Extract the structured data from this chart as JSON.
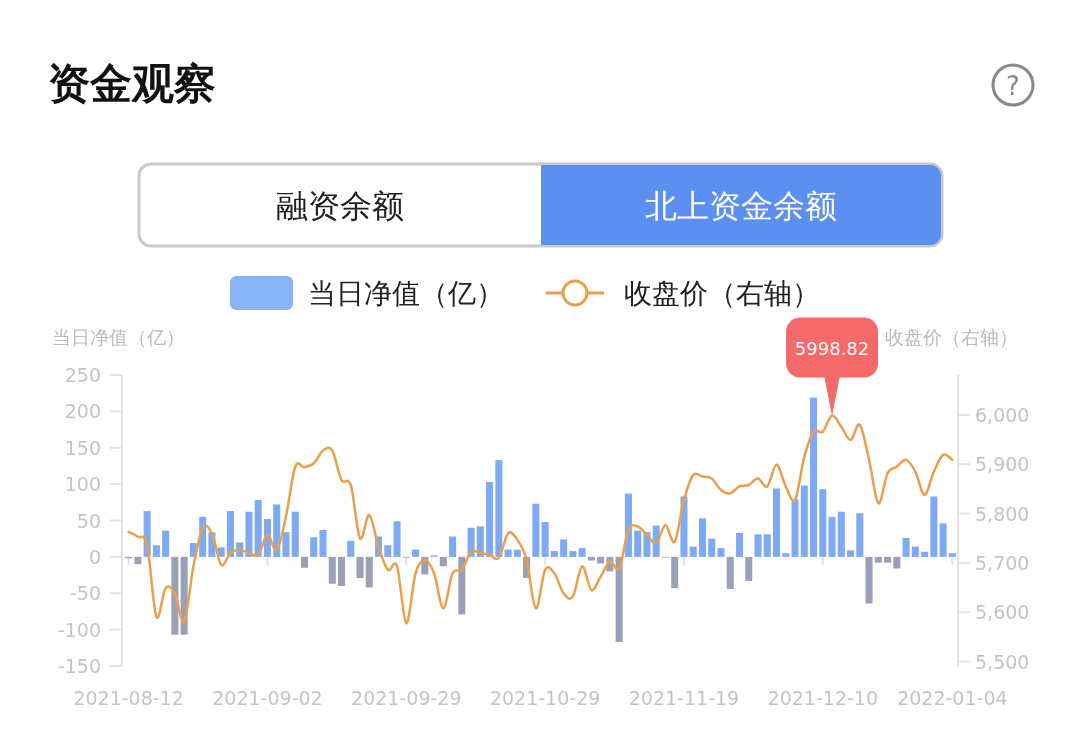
{
  "chart_data": {
    "type": "bar",
    "title": "资金观察",
    "ylabel": "当日净值（亿）",
    "y2label": "收盘价（右轴）",
    "categories": [
      "2021-08-12",
      null,
      null,
      null,
      null,
      null,
      null,
      null,
      null,
      null,
      null,
      null,
      null,
      null,
      null,
      "2021-09-02",
      null,
      null,
      null,
      null,
      null,
      null,
      null,
      null,
      null,
      null,
      null,
      null,
      null,
      null,
      "2021-09-29",
      null,
      null,
      null,
      null,
      null,
      null,
      null,
      null,
      null,
      null,
      null,
      null,
      null,
      null,
      "2021-10-29",
      null,
      null,
      null,
      null,
      null,
      null,
      null,
      null,
      null,
      null,
      null,
      null,
      null,
      null,
      "2021-11-19",
      null,
      null,
      null,
      null,
      null,
      null,
      null,
      null,
      null,
      null,
      null,
      null,
      null,
      null,
      "2021-12-10",
      null,
      null,
      null,
      null,
      null,
      null,
      null,
      null,
      null,
      null,
      null,
      null,
      null,
      "2022-01-04"
    ],
    "series": [
      {
        "name": "当日净值（亿）",
        "color": "#8ab4f8",
        "values": [
          -2,
          -10,
          63,
          16,
          36,
          -107,
          -107,
          19,
          55,
          34,
          13,
          63,
          20,
          62,
          78,
          52,
          72,
          34,
          62,
          -15,
          27,
          37,
          -37,
          -40,
          22,
          -29,
          -42,
          28,
          16,
          49,
          -1,
          10,
          -24,
          2,
          -13,
          28,
          -79,
          40,
          42,
          103,
          133,
          10,
          10,
          -29,
          73,
          48,
          8,
          24,
          8,
          12,
          -5,
          -9,
          -20,
          -117,
          87,
          36,
          34,
          43,
          -1,
          -43,
          83,
          14,
          53,
          25,
          12,
          -44,
          33,
          -33,
          31,
          31,
          94,
          5,
          79,
          98,
          219,
          93,
          55,
          62,
          9,
          60,
          -64,
          -8,
          -8,
          -16,
          26,
          14,
          7,
          83,
          46,
          5
        ],
        "colors": [
          "#9aa1b6",
          "#9aa1b6",
          "#7eaaf4",
          "#7eaaf4",
          "#7eaaf4",
          "#9aa1b6",
          "#9aa1b6",
          "#7eaaf4",
          "#7eaaf4",
          "#7eaaf4",
          "#7eaaf4",
          "#7eaaf4",
          "#7eaaf4",
          "#7eaaf4",
          "#7eaaf4",
          "#7eaaf4",
          "#7eaaf4",
          "#7eaaf4",
          "#7eaaf4",
          "#9aa1b6",
          "#7eaaf4",
          "#7eaaf4",
          "#9aa1b6",
          "#9aa1b6",
          "#7eaaf4",
          "#9aa1b6",
          "#9aa1b6",
          "#7eaaf4",
          "#7eaaf4",
          "#7eaaf4",
          "#9aa1b6",
          "#7eaaf4",
          "#9aa1b6",
          "#7eaaf4",
          "#9aa1b6",
          "#7eaaf4",
          "#9aa1b6",
          "#7eaaf4",
          "#7eaaf4",
          "#7eaaf4",
          "#7eaaf4",
          "#7eaaf4",
          "#7eaaf4",
          "#9aa1b6",
          "#7eaaf4",
          "#7eaaf4",
          "#7eaaf4",
          "#7eaaf4",
          "#7eaaf4",
          "#7eaaf4",
          "#9aa1b6",
          "#9aa1b6",
          "#9aa1b6",
          "#9aa1b6",
          "#7eaaf4",
          "#7eaaf4",
          "#7eaaf4",
          "#7eaaf4",
          "#9aa1b6",
          "#9aa1b6",
          "#7eaaf4",
          "#7eaaf4",
          "#7eaaf4",
          "#7eaaf4",
          "#7eaaf4",
          "#9aa1b6",
          "#7eaaf4",
          "#9aa1b6",
          "#7eaaf4",
          "#7eaaf4",
          "#7eaaf4",
          "#7eaaf4",
          "#7eaaf4",
          "#7eaaf4",
          "#7eaaf4",
          "#7eaaf4",
          "#7eaaf4",
          "#7eaaf4",
          "#7eaaf4",
          "#7eaaf4",
          "#9aa1b6",
          "#9aa1b6",
          "#9aa1b6",
          "#9aa1b6",
          "#7eaaf4",
          "#7eaaf4",
          "#7eaaf4",
          "#7eaaf4",
          "#7eaaf4",
          "#7eaaf4"
        ]
      },
      {
        "name": "收盘价（右轴）",
        "type": "line",
        "axis": "y2",
        "color": "#e8a04a",
        "values": [
          5763,
          5753,
          5736,
          5591,
          5649,
          5638,
          5581,
          5693,
          5770,
          5760,
          5696,
          5720,
          5726,
          5721,
          5716,
          5757,
          5726,
          5794,
          5895,
          5894,
          5902,
          5928,
          5928,
          5868,
          5858,
          5750,
          5797,
          5733,
          5686,
          5693,
          5578,
          5679,
          5706,
          5679,
          5608,
          5679,
          5686,
          5723,
          5720,
          5716,
          5710,
          5760,
          5747,
          5706,
          5608,
          5686,
          5679,
          5638,
          5632,
          5693,
          5645,
          5672,
          5703,
          5689,
          5767,
          5774,
          5757,
          5740,
          5777,
          5743,
          5828,
          5878,
          5875,
          5871,
          5848,
          5841,
          5855,
          5858,
          5871,
          5855,
          5899,
          5855,
          5828,
          5915,
          5966,
          5966,
          5998.82,
          5976,
          5949,
          5980,
          5909,
          5821,
          5882,
          5895,
          5909,
          5885,
          5838,
          5885,
          5919,
          5909
        ]
      }
    ],
    "ylim": [
      -150,
      250
    ],
    "yticks": [
      -150,
      -100,
      -50,
      0,
      50,
      100,
      150,
      200,
      250
    ],
    "y2lim": [
      5491,
      6081
    ],
    "y2ticks": [
      {
        "value": 5500,
        "label": "5,500"
      },
      {
        "value": 5600,
        "label": "5,600"
      },
      {
        "value": 5700,
        "label": "5,700"
      },
      {
        "value": 5800,
        "label": "5,800"
      },
      {
        "value": 5900,
        "label": "5,900"
      },
      {
        "value": 6000,
        "label": "6,000"
      }
    ],
    "grid": false,
    "legend": "top",
    "annotations": [
      "?",
      "融资余额",
      "北上资金余额",
      "5998.82"
    ]
  }
}
